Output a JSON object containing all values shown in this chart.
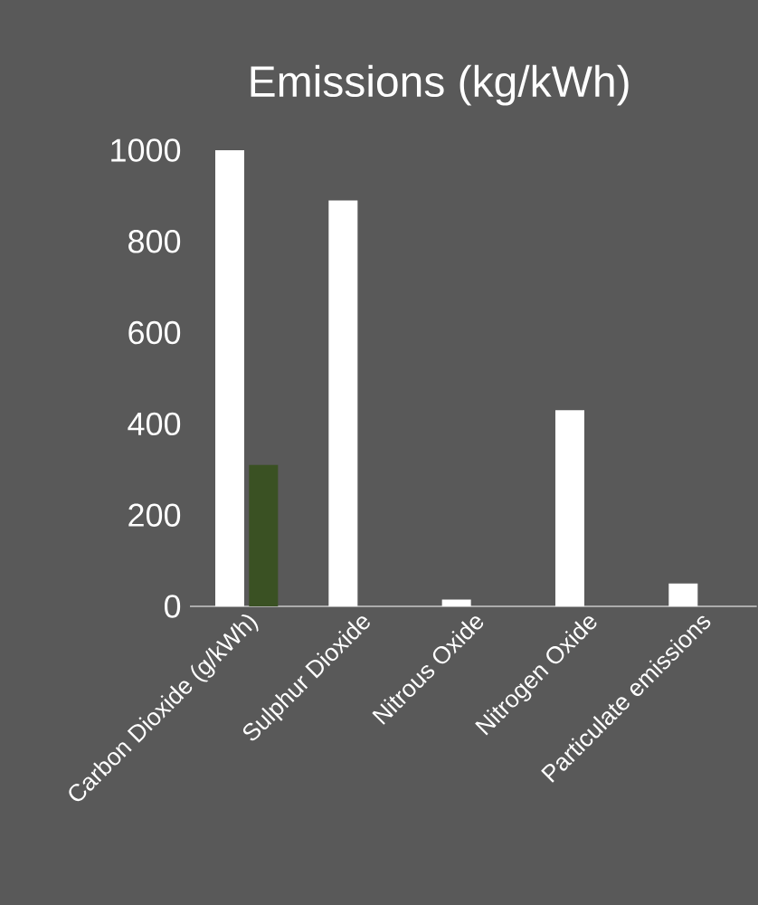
{
  "chart_data": {
    "type": "bar",
    "title": "Emissions (kg/kWh)",
    "categories": [
      "Carbon Dioxide (g/kWh)",
      "Sulphur Dioxide",
      "Nitrous Oxide",
      "Nitrogen Oxide",
      "Particulate emissions"
    ],
    "series": [
      {
        "color": "#ffffff",
        "values": [
          1000,
          890,
          15,
          430,
          50
        ]
      },
      {
        "color": "#3a5123",
        "values": [
          310,
          null,
          null,
          null,
          null
        ]
      }
    ],
    "ylim": [
      0,
      1000
    ],
    "yticks": [
      0,
      200,
      400,
      600,
      800,
      1000
    ]
  }
}
